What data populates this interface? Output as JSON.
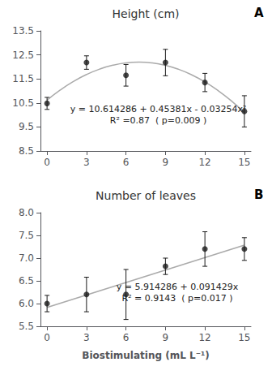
{
  "chart_data": [
    {
      "type": "scatter",
      "title": "Height (cm)",
      "panel_label": "A",
      "annotation": [
        "y = 10.614286 + 0.45381x - 0.03254x²",
        "R² =0.87  ( p=0.009 )"
      ],
      "series": [
        {
          "type": "scatter",
          "marker": "circle",
          "color": "#1a1a1a",
          "x": [
            0,
            3,
            6,
            9,
            12,
            15
          ],
          "values": [
            10.48,
            12.18,
            11.65,
            12.18,
            11.35,
            10.15
          ],
          "errors": [
            0.25,
            0.28,
            0.45,
            0.55,
            0.38,
            0.65
          ]
        },
        {
          "type": "line",
          "color": "#aaaaaa",
          "x": [
            0,
            1,
            2,
            3,
            4,
            5,
            6,
            7,
            8,
            9,
            10,
            11,
            12,
            13,
            14,
            15
          ],
          "values": [
            10.614286,
            11.035556,
            11.391746,
            11.682856,
            11.908886,
            12.069836,
            12.165706,
            12.196496,
            12.162206,
            12.062836,
            11.898386,
            11.668856,
            11.374246,
            11.014556,
            10.589786,
            10.099936
          ]
        }
      ],
      "xlim": [
        -0.5,
        15.5
      ],
      "xticks": [
        0,
        3,
        6,
        9,
        12,
        15
      ],
      "ylim": [
        8.5,
        13.5
      ],
      "yticks": [
        8.5,
        9.5,
        10.5,
        11.5,
        12.5,
        13.5
      ],
      "grid": false
    },
    {
      "type": "scatter",
      "title": "Number of leaves",
      "panel_label": "B",
      "annotation": [
        "y = 5.914286 + 0.091429x",
        "R² = 0.9143  ( p=0.017 )"
      ],
      "series": [
        {
          "type": "scatter",
          "marker": "circle",
          "color": "#1a1a1a",
          "x": [
            0,
            3,
            6,
            9,
            12,
            15
          ],
          "values": [
            6.0,
            6.2,
            6.2,
            6.82,
            7.2,
            7.2
          ],
          "errors": [
            0.18,
            0.38,
            0.55,
            0.18,
            0.38,
            0.25
          ]
        },
        {
          "type": "line",
          "color": "#aaaaaa",
          "x": [
            0,
            15
          ],
          "values": [
            5.914286,
            7.285721
          ]
        }
      ],
      "xlabel": "Biostimulating (mL L⁻¹)",
      "xlim": [
        -0.5,
        15.5
      ],
      "xticks": [
        0,
        3,
        6,
        9,
        12,
        15
      ],
      "ylim": [
        5.5,
        8.0
      ],
      "yticks": [
        5.5,
        {
          "value": 6.0,
          "label": "6.0"
        },
        6.5,
        {
          "value": 7.0,
          "label": "7.0"
        },
        7.5,
        {
          "value": 8.0,
          "label": "8.0"
        }
      ],
      "grid": false
    }
  ]
}
